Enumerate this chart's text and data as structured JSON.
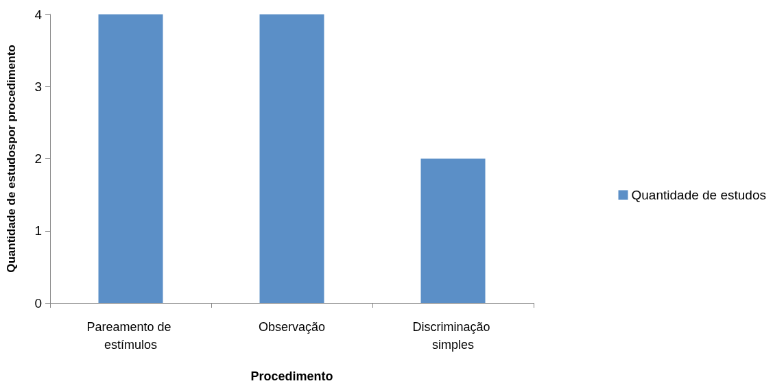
{
  "chart_data": {
    "type": "bar",
    "xlabel": "Procedimento",
    "ylabel": "Quantidade de estudospor procedimento",
    "categories": [
      "Pareamento de estímulos",
      "Observação",
      "Discriminação simples"
    ],
    "series": [
      {
        "name": "Quantidade de estudos",
        "color": "#5b8fc7",
        "values": [
          4,
          4,
          2
        ]
      }
    ],
    "ylim": [
      0,
      4
    ],
    "yticks": [
      0,
      1,
      2,
      3,
      4
    ],
    "grid": false,
    "legend": "right"
  }
}
